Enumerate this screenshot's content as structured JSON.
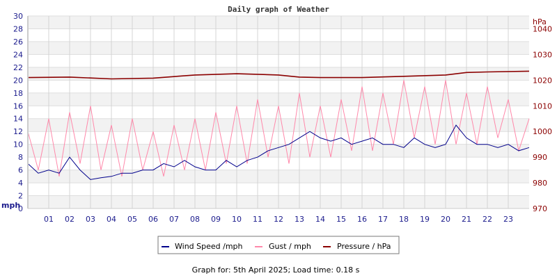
{
  "chart_data": {
    "type": "line",
    "title": "Daily graph of Weather",
    "ylabel_left": "mph",
    "ylabel_right": "hPa",
    "ylim_left": [
      0,
      30
    ],
    "yticks_left": [
      "0",
      "2",
      "4",
      "6",
      "8",
      "10",
      "12",
      "14",
      "16",
      "18",
      "20",
      "22",
      "24",
      "26",
      "28",
      "30"
    ],
    "ylim_right": [
      970,
      1045
    ],
    "yticks_right": [
      "970",
      "980",
      "990",
      "1000",
      "1010",
      "1020",
      "1030",
      "1040"
    ],
    "xlim": [
      0,
      24
    ],
    "xticks": [
      "01",
      "02",
      "03",
      "04",
      "05",
      "06",
      "07",
      "08",
      "09",
      "10",
      "11",
      "12",
      "13",
      "14",
      "15",
      "16",
      "17",
      "18",
      "19",
      "20",
      "21",
      "22",
      "23"
    ],
    "grid": true,
    "legend_position": "bottom",
    "series": [
      {
        "name": "Wind Speed /mph",
        "axis": "left",
        "color": "#00008b",
        "x_step_hours": 0.5,
        "values": [
          7,
          5.5,
          6,
          5.5,
          8,
          6,
          4.5,
          4.8,
          5,
          5.5,
          5.5,
          6,
          6,
          7,
          6.5,
          7.5,
          6.5,
          6,
          6,
          7.5,
          6.5,
          7.5,
          8,
          9,
          9.5,
          10,
          11,
          12,
          11,
          10.5,
          11,
          10,
          10.5,
          11,
          10,
          10,
          9.5,
          11,
          10,
          9.5,
          10,
          13,
          11,
          10,
          10,
          9.5,
          10,
          9,
          9.5
        ]
      },
      {
        "name": "Gust / mph",
        "axis": "left",
        "color": "#ff88aa",
        "x_step_hours": 0.5,
        "values": [
          12,
          6,
          14,
          5,
          15,
          7,
          16,
          6,
          13,
          5,
          14,
          6,
          12,
          5,
          13,
          6,
          14,
          6,
          15,
          7,
          16,
          7,
          17,
          8,
          16,
          7,
          18,
          8,
          16,
          8,
          17,
          9,
          19,
          9,
          18,
          10,
          20,
          11,
          19,
          10,
          20,
          10,
          18,
          10,
          19,
          11,
          17,
          9,
          14
        ]
      },
      {
        "name": "Pressure / hPa",
        "axis": "right",
        "color": "#8b0000",
        "x": [
          0,
          2,
          4,
          6,
          8,
          10,
          12,
          13,
          14,
          16,
          18,
          20,
          21,
          22,
          24
        ],
        "values": [
          1021,
          1021.2,
          1020.5,
          1020.8,
          1022,
          1022.5,
          1022,
          1021.2,
          1021,
          1021,
          1021.5,
          1022,
          1023,
          1023.2,
          1023.5
        ]
      }
    ]
  },
  "footer": "Graph for: 5th April 2025; Load time: 0.18 s"
}
